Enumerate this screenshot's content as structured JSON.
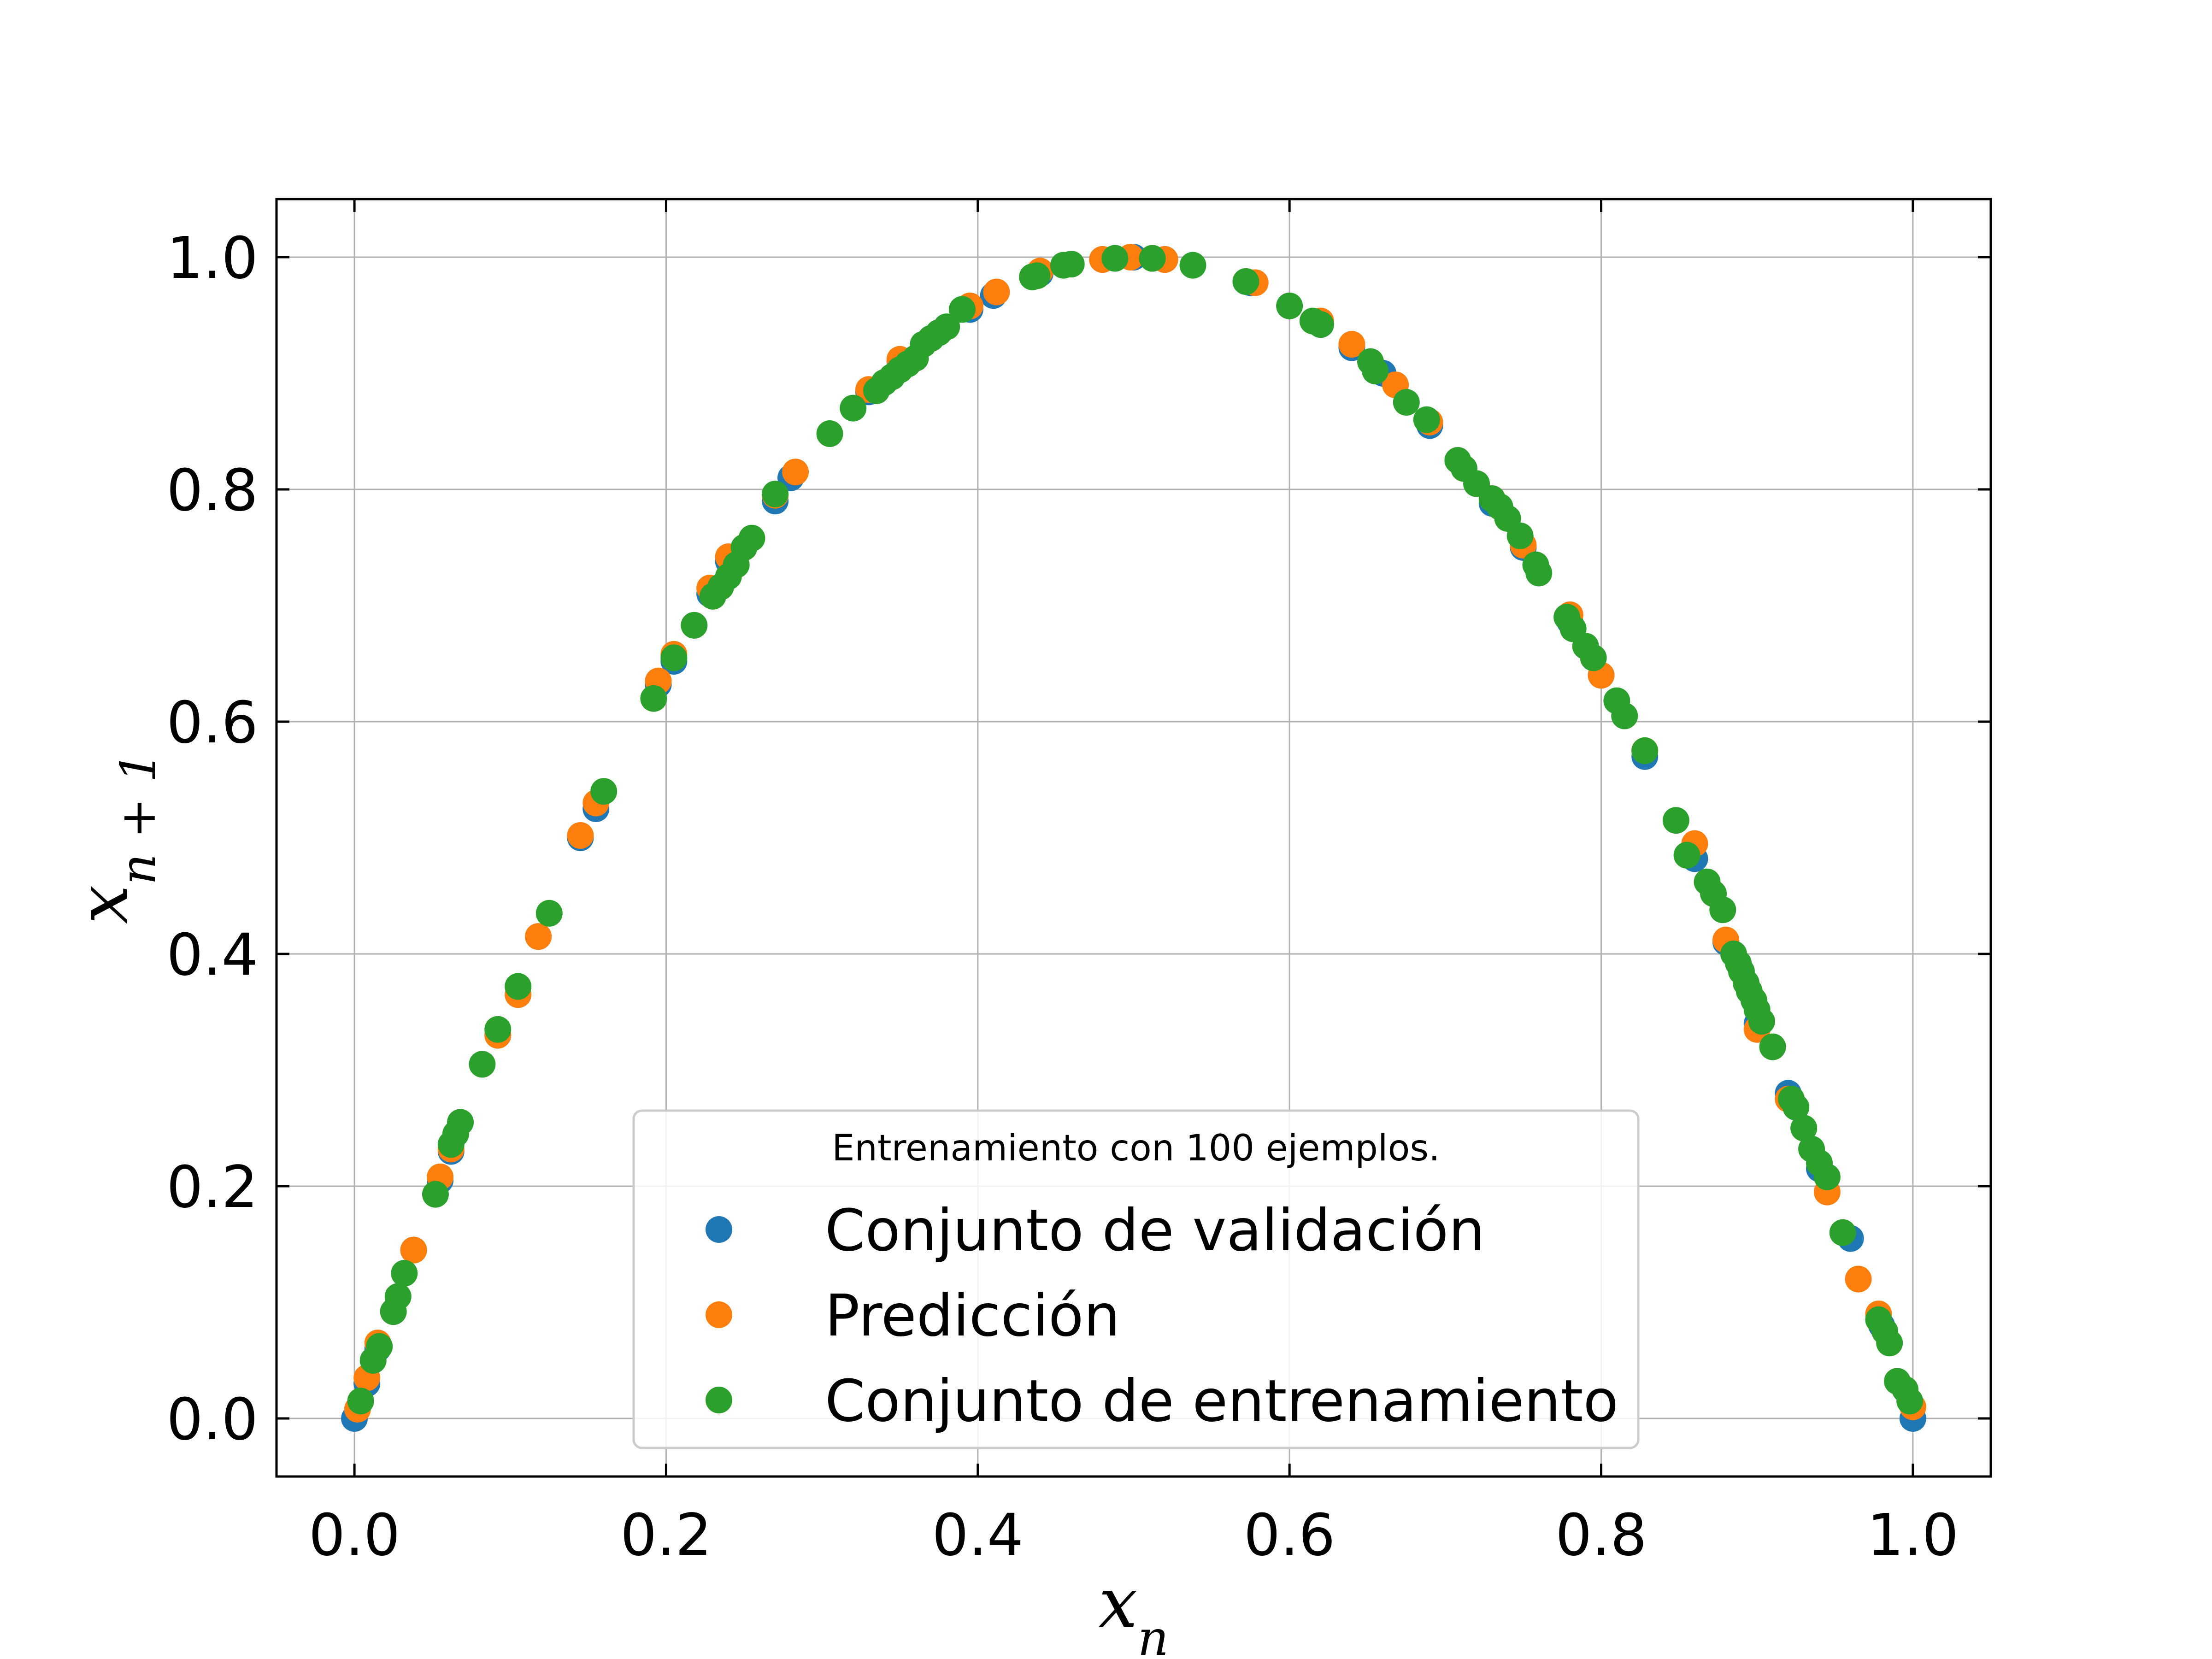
{
  "chart_data": {
    "type": "scatter",
    "xlabel": "x_n",
    "ylabel": "x_{n+1}",
    "xlim": [
      -0.05,
      1.05
    ],
    "ylim": [
      -0.05,
      1.05
    ],
    "xticks": [
      "0.0",
      "0.2",
      "0.4",
      "0.6",
      "0.8",
      "1.0"
    ],
    "yticks": [
      "0.0",
      "0.2",
      "0.4",
      "0.6",
      "0.8",
      "1.0"
    ],
    "xtick_values": [
      0.0,
      0.2,
      0.4,
      0.6,
      0.8,
      1.0
    ],
    "ytick_values": [
      0.0,
      0.2,
      0.4,
      0.6,
      0.8,
      1.0
    ],
    "grid": true,
    "legend_title": "Entrenamiento con 100 ejemplos.",
    "legend_position": "lower-center",
    "series": [
      {
        "name": "Conjunto de validación",
        "color": "#1f77b4",
        "x": [
          0.0,
          0.008,
          0.015,
          0.038,
          0.055,
          0.062,
          0.092,
          0.105,
          0.118,
          0.145,
          0.155,
          0.195,
          0.205,
          0.228,
          0.24,
          0.27,
          0.28,
          0.33,
          0.35,
          0.395,
          0.41,
          0.44,
          0.48,
          0.5,
          0.52,
          0.575,
          0.62,
          0.64,
          0.66,
          0.69,
          0.73,
          0.75,
          0.78,
          0.8,
          0.828,
          0.86,
          0.88,
          0.9,
          0.92,
          0.94,
          0.96,
          0.98,
          1.0
        ],
        "y": [
          0.0,
          0.03,
          0.06,
          0.145,
          0.205,
          0.23,
          0.33,
          0.365,
          0.415,
          0.5,
          0.525,
          0.632,
          0.652,
          0.71,
          0.738,
          0.79,
          0.81,
          0.884,
          0.91,
          0.955,
          0.967,
          0.986,
          0.998,
          1.0,
          0.998,
          0.978,
          0.942,
          0.922,
          0.9,
          0.855,
          0.788,
          0.75,
          0.686,
          0.64,
          0.57,
          0.482,
          0.41,
          0.34,
          0.28,
          0.215,
          0.155,
          0.08,
          0.0
        ]
      },
      {
        "name": "Predicción",
        "color": "#ff7f0e",
        "x": [
          0.002,
          0.008,
          0.015,
          0.038,
          0.055,
          0.062,
          0.092,
          0.105,
          0.118,
          0.145,
          0.155,
          0.195,
          0.205,
          0.228,
          0.24,
          0.27,
          0.283,
          0.33,
          0.35,
          0.395,
          0.412,
          0.44,
          0.48,
          0.498,
          0.52,
          0.578,
          0.62,
          0.64,
          0.668,
          0.69,
          0.73,
          0.75,
          0.78,
          0.8,
          0.828,
          0.86,
          0.88,
          0.9,
          0.92,
          0.945,
          0.965,
          0.978,
          1.0
        ],
        "y": [
          0.008,
          0.035,
          0.065,
          0.145,
          0.208,
          0.232,
          0.33,
          0.365,
          0.415,
          0.502,
          0.53,
          0.635,
          0.658,
          0.715,
          0.742,
          0.795,
          0.815,
          0.886,
          0.912,
          0.958,
          0.97,
          0.988,
          0.998,
          1.0,
          0.998,
          0.978,
          0.945,
          0.925,
          0.89,
          0.858,
          0.792,
          0.752,
          0.692,
          0.64,
          0.575,
          0.495,
          0.412,
          0.335,
          0.275,
          0.195,
          0.12,
          0.09,
          0.01
        ]
      },
      {
        "name": "Conjunto de entrenamiento",
        "color": "#2ca02c",
        "x": [
          0.004,
          0.012,
          0.016,
          0.025,
          0.028,
          0.032,
          0.052,
          0.062,
          0.065,
          0.068,
          0.082,
          0.092,
          0.105,
          0.125,
          0.16,
          0.192,
          0.205,
          0.218,
          0.23,
          0.235,
          0.24,
          0.245,
          0.25,
          0.255,
          0.27,
          0.305,
          0.32,
          0.335,
          0.34,
          0.345,
          0.35,
          0.355,
          0.36,
          0.365,
          0.37,
          0.375,
          0.38,
          0.39,
          0.435,
          0.438,
          0.455,
          0.46,
          0.488,
          0.512,
          0.538,
          0.572,
          0.6,
          0.615,
          0.62,
          0.652,
          0.655,
          0.675,
          0.688,
          0.708,
          0.712,
          0.72,
          0.73,
          0.735,
          0.74,
          0.748,
          0.758,
          0.76,
          0.778,
          0.782,
          0.79,
          0.795,
          0.81,
          0.815,
          0.828,
          0.848,
          0.855,
          0.868,
          0.872,
          0.878,
          0.885,
          0.888,
          0.89,
          0.893,
          0.895,
          0.898,
          0.9,
          0.903,
          0.91,
          0.922,
          0.925,
          0.93,
          0.935,
          0.94,
          0.945,
          0.955,
          0.978,
          0.982,
          0.985,
          0.99,
          0.995,
          0.998
        ],
        "y": [
          0.015,
          0.05,
          0.062,
          0.092,
          0.105,
          0.125,
          0.193,
          0.236,
          0.245,
          0.255,
          0.305,
          0.335,
          0.372,
          0.435,
          0.54,
          0.62,
          0.655,
          0.683,
          0.708,
          0.716,
          0.725,
          0.735,
          0.75,
          0.758,
          0.796,
          0.848,
          0.87,
          0.885,
          0.892,
          0.897,
          0.903,
          0.908,
          0.913,
          0.925,
          0.93,
          0.935,
          0.94,
          0.955,
          0.983,
          0.984,
          0.993,
          0.994,
          0.999,
          0.999,
          0.993,
          0.979,
          0.958,
          0.945,
          0.942,
          0.91,
          0.902,
          0.875,
          0.86,
          0.825,
          0.818,
          0.805,
          0.792,
          0.785,
          0.775,
          0.76,
          0.735,
          0.728,
          0.69,
          0.68,
          0.665,
          0.655,
          0.618,
          0.605,
          0.575,
          0.515,
          0.485,
          0.462,
          0.452,
          0.438,
          0.4,
          0.392,
          0.385,
          0.375,
          0.368,
          0.36,
          0.352,
          0.342,
          0.32,
          0.275,
          0.268,
          0.25,
          0.232,
          0.22,
          0.208,
          0.16,
          0.085,
          0.075,
          0.065,
          0.032,
          0.025,
          0.015
        ]
      }
    ]
  }
}
